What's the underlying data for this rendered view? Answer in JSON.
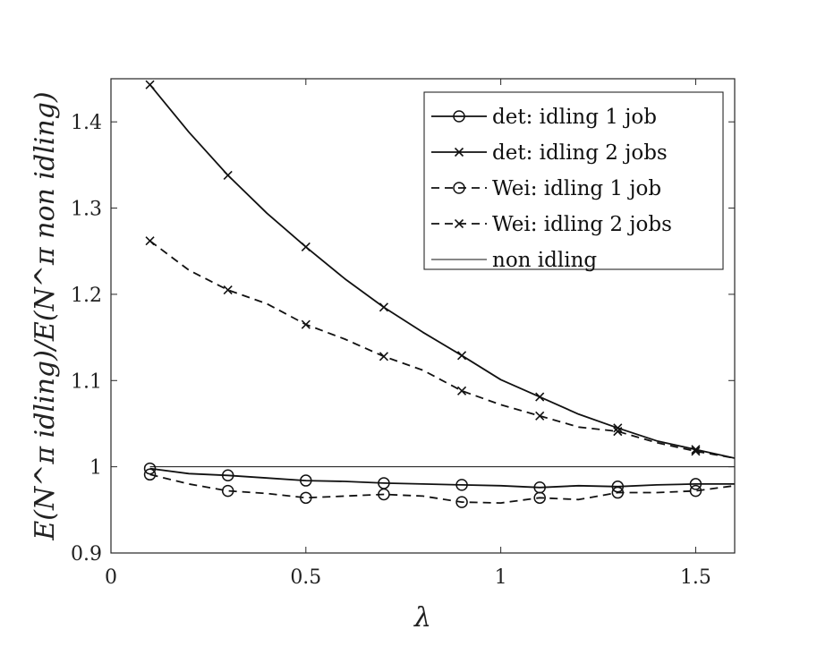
{
  "chart_data": {
    "type": "line",
    "xlabel": "λ",
    "ylabel": "E(N^π idling)/E(N^π non idling)",
    "xlim": [
      0,
      1.6
    ],
    "ylim": [
      0.9,
      1.45
    ],
    "xticks": [
      {
        "value": 0,
        "label": "0"
      },
      {
        "value": 0.5,
        "label": "0.5"
      },
      {
        "value": 1,
        "label": "1"
      },
      {
        "value": 1.5,
        "label": "1.5"
      }
    ],
    "yticks": [
      {
        "value": 0.9,
        "label": "0.9"
      },
      {
        "value": 1.0,
        "label": "1"
      },
      {
        "value": 1.1,
        "label": "1.1"
      },
      {
        "value": 1.2,
        "label": "1.2"
      },
      {
        "value": 1.3,
        "label": "1.3"
      },
      {
        "value": 1.4,
        "label": "1.4"
      }
    ],
    "grid": false,
    "legend_position": "top-right",
    "x": [
      0.1,
      0.2,
      0.3,
      0.4,
      0.5,
      0.6,
      0.7,
      0.8,
      0.9,
      1.0,
      1.1,
      1.2,
      1.3,
      1.4,
      1.5,
      1.6
    ],
    "series": [
      {
        "name": "det: idling 1 job",
        "style": "solid",
        "marker": "circle",
        "values": [
          0.998,
          0.992,
          0.99,
          0.987,
          0.984,
          0.983,
          0.981,
          0.98,
          0.979,
          0.978,
          0.976,
          0.978,
          0.977,
          0.979,
          0.98,
          0.98
        ]
      },
      {
        "name": "det: idling 2 jobs",
        "style": "solid",
        "marker": "x",
        "values": [
          1.443,
          1.388,
          1.338,
          1.294,
          1.255,
          1.218,
          1.185,
          1.156,
          1.129,
          1.101,
          1.081,
          1.061,
          1.045,
          1.03,
          1.02,
          1.01
        ]
      },
      {
        "name": "Wei: idling 1 job",
        "style": "dashed",
        "marker": "circle",
        "values": [
          0.991,
          0.98,
          0.972,
          0.969,
          0.964,
          0.966,
          0.968,
          0.966,
          0.959,
          0.958,
          0.964,
          0.962,
          0.97,
          0.97,
          0.972,
          0.978
        ]
      },
      {
        "name": "Wei: idling 2 jobs",
        "style": "dashed",
        "marker": "x",
        "values": [
          1.262,
          1.228,
          1.205,
          1.189,
          1.165,
          1.148,
          1.128,
          1.112,
          1.088,
          1.072,
          1.059,
          1.046,
          1.041,
          1.028,
          1.018,
          1.01
        ]
      },
      {
        "name": "non idling",
        "style": "thin",
        "marker": "none",
        "values": [
          1.0,
          1.0,
          1.0,
          1.0,
          1.0,
          1.0,
          1.0,
          1.0,
          1.0,
          1.0,
          1.0,
          1.0,
          1.0,
          1.0,
          1.0,
          1.0
        ]
      }
    ]
  }
}
